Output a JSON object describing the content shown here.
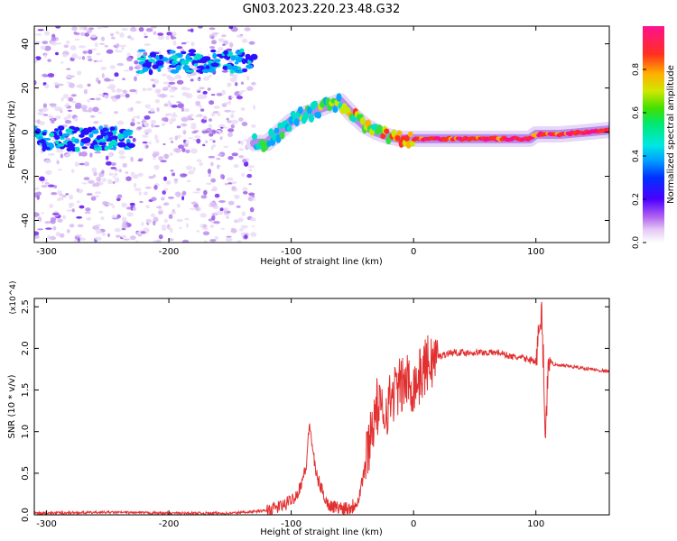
{
  "title": "GN03.2023.220.23.48.G32",
  "chart_data": [
    {
      "type": "heatmap",
      "xlabel": "Height of straight line (km)",
      "ylabel": "Frequency (Hz)",
      "xlim": [
        -310,
        160
      ],
      "ylim": [
        -50,
        48
      ],
      "xticks": [
        -300,
        -200,
        -100,
        0,
        100
      ],
      "yticks": [
        -40,
        -20,
        0,
        20,
        40
      ],
      "colorbar": {
        "label": "Normalized spectral amplitude",
        "range": [
          0,
          1
        ],
        "ticks": [
          "0.0",
          "0.2",
          "0.4",
          "0.6",
          "0.8"
        ]
      },
      "ridge": {
        "x": [
          -130,
          -120,
          -110,
          -100,
          -90,
          -80,
          -70,
          -60,
          -50,
          -40,
          -30,
          -20,
          -10,
          0,
          20,
          40,
          60,
          80,
          95,
          100,
          120,
          140,
          160
        ],
        "y": [
          -5,
          -5,
          0,
          5,
          8,
          10,
          12,
          14,
          8,
          3,
          0,
          -2,
          -3,
          -3,
          -3,
          -3,
          -3,
          -3,
          -3,
          -1,
          -1,
          0,
          1
        ]
      },
      "early_bands": [
        {
          "x": [
            -310,
            -230
          ],
          "y": -3
        },
        {
          "x": [
            -225,
            -130
          ],
          "y": 32
        }
      ]
    },
    {
      "type": "line",
      "xlabel": "Height of straight line (km)",
      "ylabel": "SNR (10 * v/v)",
      "yunit_note": "(x10^4)",
      "xlim": [
        -310,
        160
      ],
      "ylim": [
        0,
        2.6
      ],
      "xticks": [
        -300,
        -200,
        -100,
        0,
        100
      ],
      "yticks": [
        0.0,
        0.5,
        1.0,
        1.5,
        2.0,
        2.5
      ],
      "series": [
        {
          "x": [
            -310,
            -250,
            -200,
            -150,
            -120,
            -105,
            -95,
            -88,
            -85,
            -80,
            -75,
            -70,
            -60,
            -50,
            -45,
            -40,
            -35,
            -30,
            -25,
            -20,
            -15,
            -10,
            -5,
            0,
            5,
            10,
            20,
            30,
            40,
            50,
            60,
            70,
            80,
            90,
            100,
            105,
            108,
            110,
            115,
            130,
            160
          ],
          "y": [
            0.02,
            0.03,
            0.02,
            0.02,
            0.05,
            0.12,
            0.25,
            0.55,
            1.1,
            0.5,
            0.3,
            0.12,
            0.08,
            0.1,
            0.2,
            0.55,
            1.0,
            1.3,
            1.2,
            1.35,
            1.5,
            1.55,
            1.6,
            1.55,
            1.65,
            1.8,
            1.9,
            1.95,
            1.95,
            1.95,
            1.95,
            1.95,
            1.9,
            1.88,
            1.85,
            2.4,
            0.9,
            1.9,
            1.8,
            1.78,
            1.72
          ]
        }
      ]
    }
  ],
  "colors": {
    "line": "#e23030"
  }
}
